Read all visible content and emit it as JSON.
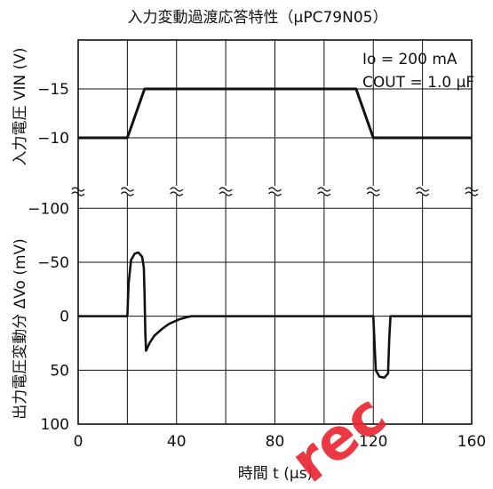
{
  "title": "入力変動過渡応答特性（μPC79N05）",
  "conditions": [
    "Io = 200 mA",
    "COUT = 1.0 μF"
  ],
  "watermark": "rec",
  "colors": {
    "line": "#111111",
    "grid": "#111111",
    "watermark": "#e8242f"
  },
  "chart_data": [
    {
      "type": "line",
      "panel": "input",
      "ylabel": "入力電圧 VIN (V)",
      "xlabel": "時間 t (μs)",
      "xlim": [
        0,
        160
      ],
      "ylim": [
        -20,
        -5
      ],
      "y_ticks": [
        -15,
        -10
      ],
      "y_tick_labels": [
        "−15",
        "−10"
      ],
      "grid": true,
      "series": [
        {
          "x": [
            0,
            20,
            27,
            113,
            120,
            160
          ],
          "y": [
            -10,
            -10,
            -15,
            -15,
            -10,
            -10
          ]
        }
      ]
    },
    {
      "type": "line",
      "panel": "output",
      "ylabel": "出力電圧変動分 ΔVo (mV)",
      "xlabel": "時間 t (μs)",
      "xlim": [
        0,
        160
      ],
      "x_ticks": [
        0,
        40,
        80,
        120,
        160
      ],
      "x_tick_labels": [
        "0",
        "40",
        "80",
        "120",
        "160"
      ],
      "ylim": [
        -120,
        100
      ],
      "y_ticks": [
        -100,
        -50,
        0,
        50,
        100
      ],
      "y_tick_labels": [
        "−100",
        "−50",
        "0",
        "50",
        "100"
      ],
      "y_inverted": true,
      "grid": true,
      "series": [
        {
          "x": [
            0,
            20,
            20.5,
            21.5,
            23,
            24.5,
            26,
            26.7,
            27,
            27.3,
            27.6,
            29,
            31,
            34,
            37,
            41,
            44,
            46,
            120,
            120.5,
            121,
            122.5,
            124.5,
            126,
            126.5,
            127,
            160
          ],
          "y": [
            0,
            0,
            -30,
            -52,
            -58,
            -59,
            -55,
            -45,
            -20,
            15,
            32,
            25,
            18,
            12,
            7,
            3,
            1,
            0,
            0,
            25,
            50,
            56,
            57,
            53,
            20,
            0,
            0
          ]
        }
      ]
    }
  ]
}
